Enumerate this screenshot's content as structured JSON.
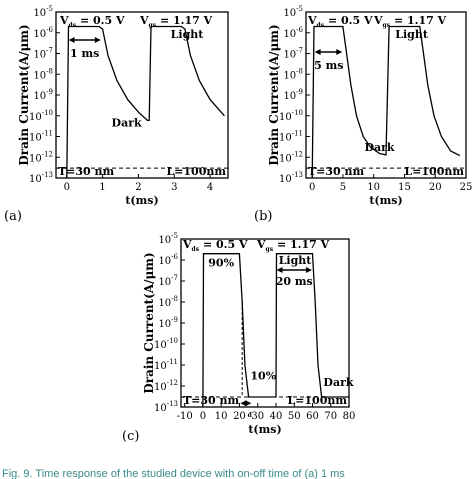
{
  "chart_data": [
    {
      "panel": "(a)",
      "type": "line",
      "y_scale": "log",
      "ylim": [
        1e-13,
        1e-05
      ],
      "xlim": [
        -0.3,
        4.5
      ],
      "x_ticks": [
        "0",
        "1",
        "2",
        "3",
        "4"
      ],
      "x_tick_values": [
        0,
        1,
        2,
        3,
        4
      ],
      "y_tick_labels": [
        "10-5",
        "10-6",
        "10-7",
        "10-8",
        "10-9",
        "10-10",
        "10-11",
        "10-12",
        "10-13"
      ],
      "ylabel": "Drain Current(A/μm)",
      "xlabel": "t(ms)",
      "dashed_level": 3e-13,
      "series": [
        {
          "x": [
            0,
            0.05,
            0.9,
            1.0,
            1.15,
            1.4,
            1.7,
            2.0,
            2.25,
            2.3,
            2.35,
            3.2,
            3.3,
            3.45,
            3.7,
            4.0,
            4.4
          ],
          "y": [
            1e-13,
            2e-06,
            2e-06,
            1.5e-06,
            8e-08,
            5e-09,
            6e-10,
            1.5e-10,
            6e-11,
            6e-11,
            2e-06,
            2e-06,
            1.5e-06,
            8e-08,
            5e-09,
            6e-10,
            1e-10
          ]
        }
      ],
      "texts": {
        "vds_main": "V",
        "vds_sub": "ds",
        "vds_val": "= 0.5 V",
        "vgs_main": "V",
        "vgs_sub": "gs",
        "vgs_val": "= 1.17 V",
        "light": "Light",
        "dark": "Dark",
        "arrow": "1 ms",
        "t_label": "T=30 nm",
        "l_label": "L=100nm"
      }
    },
    {
      "panel": "(b)",
      "type": "line",
      "y_scale": "log",
      "ylim": [
        1e-13,
        1e-05
      ],
      "xlim": [
        -1,
        25
      ],
      "x_ticks": [
        "0",
        "5",
        "10",
        "15",
        "20",
        "25"
      ],
      "x_tick_values": [
        0,
        5,
        10,
        15,
        20,
        25
      ],
      "y_tick_labels": [
        "10-5",
        "10-6",
        "10-7",
        "10-8",
        "10-9",
        "10-10",
        "10-11",
        "10-12",
        "10-13"
      ],
      "ylabel": "Drain Current(A/μm)",
      "xlabel": "t(ms)",
      "dashed_level": 3e-13,
      "series": [
        {
          "x": [
            0,
            0.3,
            5,
            5.6,
            6.3,
            7.2,
            8.3,
            9.5,
            11,
            12,
            12.5,
            17.5,
            18.1,
            18.8,
            19.8,
            21,
            22.5,
            24
          ],
          "y": [
            1e-13,
            2e-06,
            2e-06,
            1e-07,
            3e-09,
            1e-10,
            1e-11,
            3e-12,
            1.5e-12,
            1.3e-12,
            2e-06,
            2e-06,
            1e-07,
            3e-09,
            1e-10,
            1e-11,
            2e-12,
            1.2e-12
          ]
        }
      ],
      "texts": {
        "vds_main": "V",
        "vds_sub": "ds",
        "vds_val": "= 0.5 V",
        "vgs_main": "V",
        "vgs_sub": "gs",
        "vgs_val": "= 1.17 V",
        "light": "Light",
        "dark": "Dark",
        "arrow": "5 ms",
        "t_label": "T=30 nm",
        "l_label": "L=100nm"
      }
    },
    {
      "panel": "(c)",
      "type": "line",
      "y_scale": "log",
      "ylim": [
        1e-13,
        1e-05
      ],
      "xlim": [
        -12,
        80
      ],
      "x_ticks": [
        "-10",
        "0",
        "10",
        "20",
        "30",
        "40",
        "50",
        "60",
        "70",
        "80"
      ],
      "x_tick_values": [
        -10,
        0,
        10,
        20,
        30,
        40,
        50,
        60,
        70,
        80
      ],
      "y_tick_labels": [
        "10-5",
        "10-6",
        "10-7",
        "10-8",
        "10-9",
        "10-10",
        "10-11",
        "10-12",
        "10-13"
      ],
      "ylabel": "Drain Current(A/μm)",
      "xlabel": "t(ms)",
      "dashed_level": 3e-13,
      "series": [
        {
          "x": [
            0,
            0.3,
            20,
            21.5,
            23,
            25,
            40,
            40.3,
            60,
            61.5,
            63,
            65,
            80
          ],
          "y": [
            1e-13,
            2e-06,
            2e-06,
            1e-08,
            1e-11,
            3e-13,
            3e-13,
            2e-06,
            2e-06,
            1e-08,
            1e-11,
            3e-13,
            3e-13
          ]
        }
      ],
      "texts": {
        "vds_main": "V",
        "vds_sub": "ds",
        "vds_val": "= 0.5 V",
        "vgs_main": "V",
        "vgs_sub": "gs",
        "vgs_val": "= 1.17 V",
        "light": "Light",
        "dark": "Dark",
        "arrow": "20 ms",
        "t_label": "T=30 nm",
        "l_label": "L=100nm",
        "pct90": "90%",
        "pct10": "10%",
        "td": "d"
      }
    }
  ],
  "caption": "Fig. 9.  Time response of the studied device with on-off time of (a) 1 ms"
}
